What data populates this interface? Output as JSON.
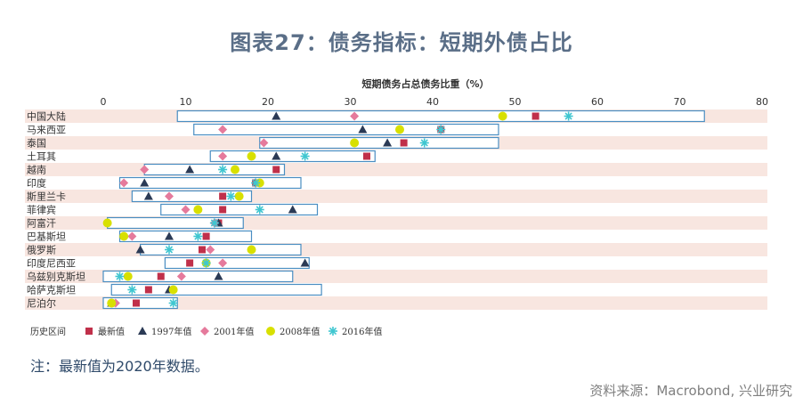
{
  "header": {
    "title": "图表27：债务指标：短期外债占比"
  },
  "footer": {
    "note": "注：最新值为2020年数据。",
    "source": "资料来源：Macrobond, 兴业研究"
  },
  "colors": {
    "range_border": "#4a8ec2",
    "latest": "#c0304a",
    "y1997": "#2b3a55",
    "y2001": "#e57a9c",
    "y2008": "#d8e000",
    "y2016": "#3fc6d0",
    "row_band": "#f8e6e0",
    "axis_text": "#333333"
  },
  "chart_data": {
    "type": "range-dot",
    "xlabel": "短期债务占总债务比重（%）",
    "xlim": [
      0,
      80
    ],
    "xticks": [
      0,
      10,
      20,
      30,
      40,
      50,
      60,
      70,
      80
    ],
    "legend": {
      "position": "bottom-left",
      "items": [
        {
          "key": "range",
          "label": "历史区间",
          "marker": "box"
        },
        {
          "key": "latest",
          "label": "最新值",
          "marker": "square"
        },
        {
          "key": "y1997",
          "label": "1997年值",
          "marker": "triangle"
        },
        {
          "key": "y2001",
          "label": "2001年值",
          "marker": "diamond"
        },
        {
          "key": "y2008",
          "label": "2008年值",
          "marker": "circle"
        },
        {
          "key": "y2016",
          "label": "2016年值",
          "marker": "asterisk"
        }
      ]
    },
    "categories": [
      "中国大陆",
      "马来西亚",
      "泰国",
      "土耳其",
      "越南",
      "印度",
      "斯里兰卡",
      "菲律宾",
      "阿富汗",
      "巴基斯坦",
      "俄罗斯",
      "印度尼西亚",
      "乌兹别克斯坦",
      "哈萨克斯坦",
      "尼泊尔"
    ],
    "range": [
      [
        9,
        73
      ],
      [
        11,
        48
      ],
      [
        19,
        48
      ],
      [
        13,
        33
      ],
      [
        5,
        22
      ],
      [
        2,
        24
      ],
      [
        3.5,
        18
      ],
      [
        7,
        26
      ],
      [
        0.5,
        17
      ],
      [
        2,
        18
      ],
      [
        4.5,
        24
      ],
      [
        7.5,
        25
      ],
      [
        0,
        23
      ],
      [
        1,
        26.5
      ],
      [
        0,
        9
      ]
    ],
    "series": [
      {
        "key": "latest",
        "values": [
          52.5,
          41,
          36.5,
          32,
          21,
          18.5,
          14.5,
          14.5,
          14,
          12.5,
          12,
          10.5,
          7,
          5.5,
          4
        ]
      },
      {
        "key": "y1997",
        "values": [
          21,
          31.5,
          34.5,
          21,
          10.5,
          5,
          5.5,
          23,
          14,
          8,
          4.5,
          24.5,
          14,
          8,
          1
        ]
      },
      {
        "key": "y2001",
        "values": [
          30.5,
          14.5,
          19.5,
          14.5,
          5,
          2.5,
          8,
          10,
          13.5,
          3.5,
          13,
          14.5,
          9.5,
          8.5,
          1.5
        ]
      },
      {
        "key": "y2008",
        "values": [
          48.5,
          36,
          30.5,
          18,
          16,
          19,
          16.5,
          11.5,
          0.5,
          2.5,
          18,
          12.5,
          3,
          8.5,
          1
        ]
      },
      {
        "key": "y2016",
        "values": [
          56.5,
          41,
          39,
          24.5,
          14.5,
          18.5,
          15.5,
          19,
          13.5,
          11.5,
          8,
          12.5,
          2,
          3.5,
          8.5
        ]
      }
    ]
  }
}
